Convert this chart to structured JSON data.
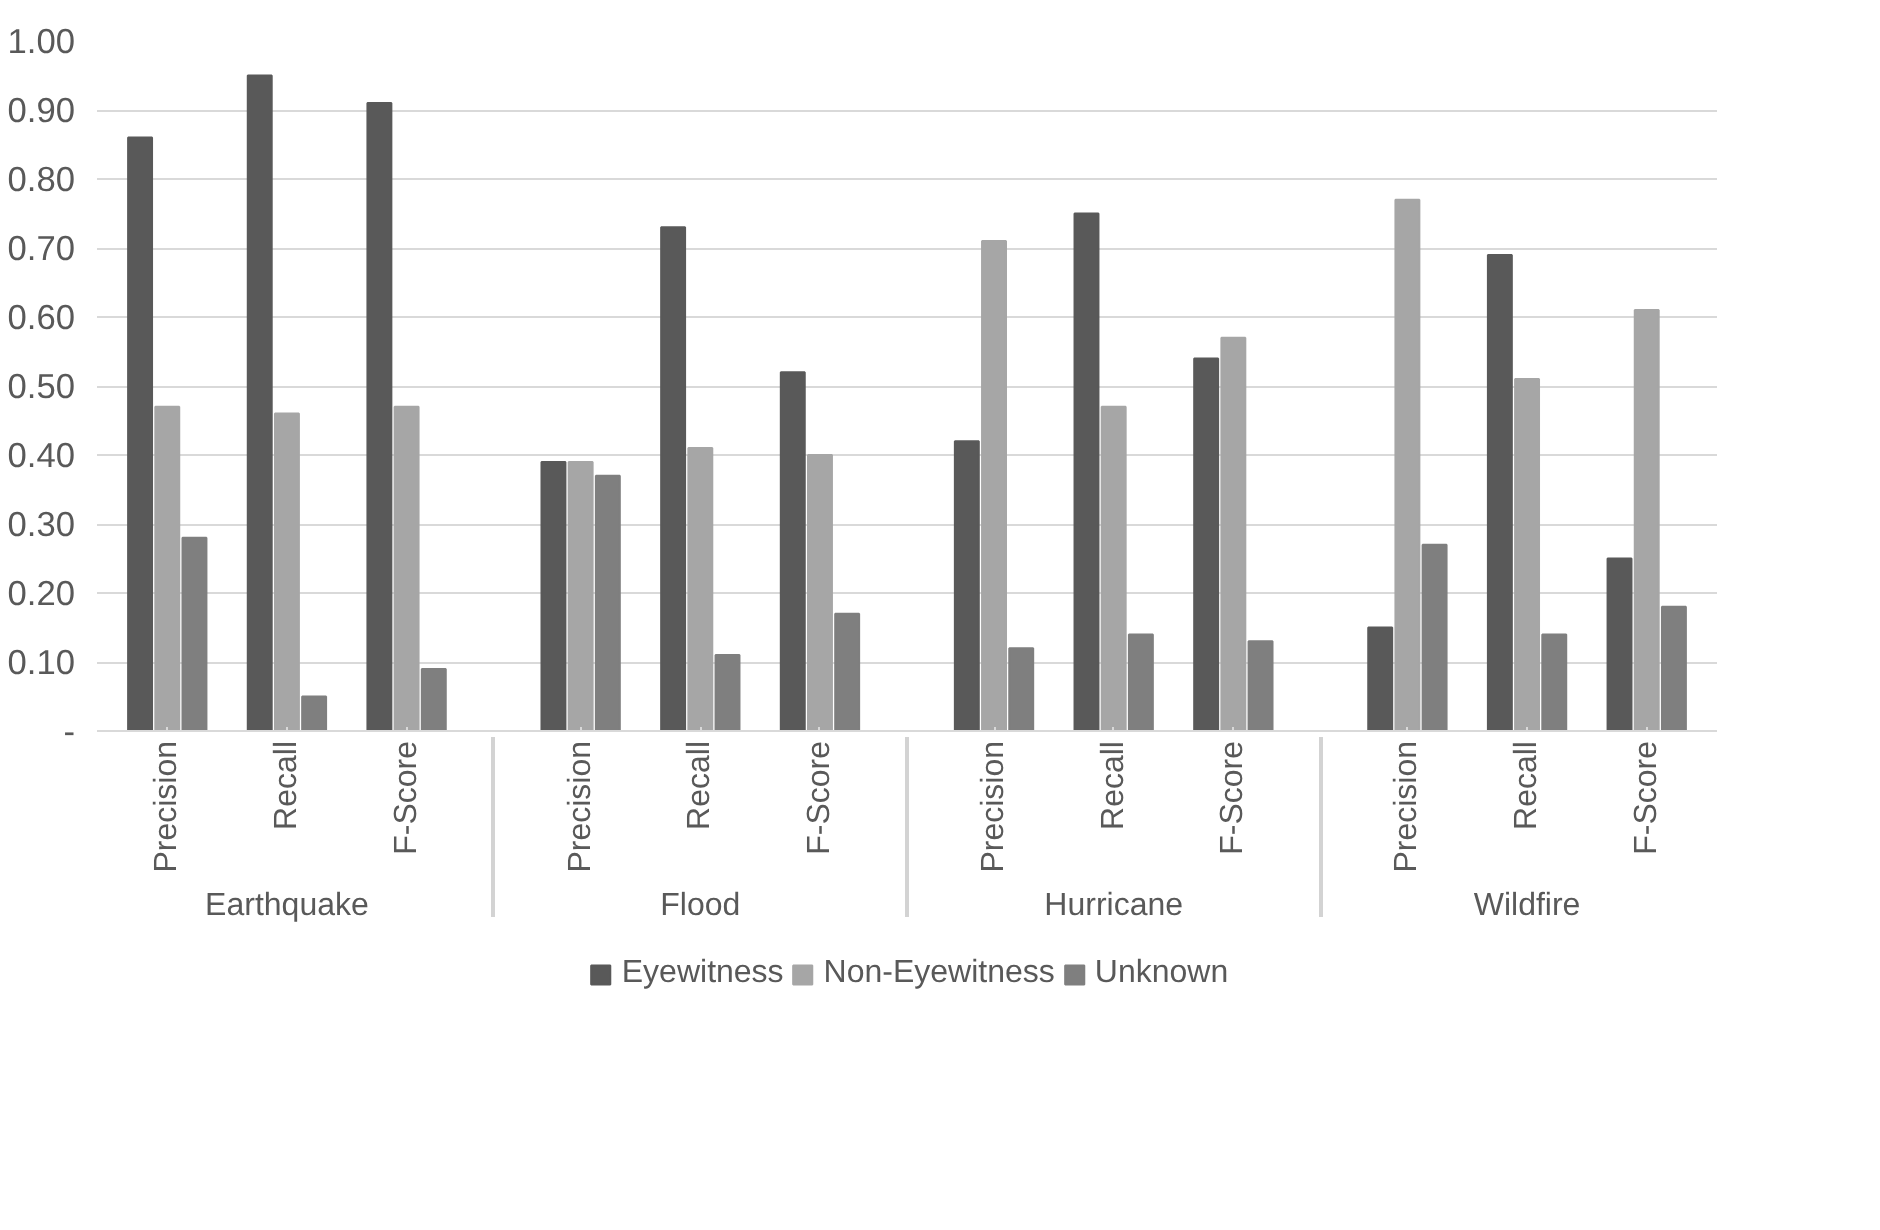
{
  "chart_data": {
    "type": "bar",
    "categories": [
      "Precision",
      "Recall",
      "F-Score",
      "Precision",
      "Recall",
      "F-Score",
      "Precision",
      "Recall",
      "F-Score",
      "Precision",
      "Recall",
      "F-Score"
    ],
    "annotations": [
      "Earthquake",
      "Flood",
      "Hurricane",
      "Wildfire"
    ],
    "series": [
      {
        "name": "Eyewitness",
        "color": "#595959",
        "values": [
          0.86,
          0.95,
          0.91,
          0.39,
          0.73,
          0.52,
          0.42,
          0.75,
          0.54,
          0.15,
          0.69,
          0.25
        ]
      },
      {
        "name": "Non-Eyewitness",
        "color": "#a6a6a6",
        "values": [
          0.47,
          0.46,
          0.47,
          0.39,
          0.41,
          0.4,
          0.71,
          0.47,
          0.57,
          0.77,
          0.51,
          0.61
        ]
      },
      {
        "name": "Unknown",
        "color": "#7f7f7f",
        "values": [
          0.28,
          0.05,
          0.09,
          0.37,
          0.11,
          0.17,
          0.12,
          0.14,
          0.13,
          0.27,
          0.14,
          0.18
        ]
      }
    ],
    "ylim": [
      0,
      1
    ],
    "yticks": [
      {
        "value": 0,
        "label": "-"
      },
      {
        "value": 0.1,
        "label": "0.10"
      },
      {
        "value": 0.2,
        "label": "0.20"
      },
      {
        "value": 0.3,
        "label": "0.30"
      },
      {
        "value": 0.4,
        "label": "0.40"
      },
      {
        "value": 0.5,
        "label": "0.50"
      },
      {
        "value": 0.6,
        "label": "0.60"
      },
      {
        "value": 0.7,
        "label": "0.70"
      },
      {
        "value": 0.8,
        "label": "0.80"
      },
      {
        "value": 0.9,
        "label": "0.90"
      },
      {
        "value": 1.0,
        "label": "1.00"
      }
    ],
    "grid": "y",
    "legend": "bottom"
  }
}
